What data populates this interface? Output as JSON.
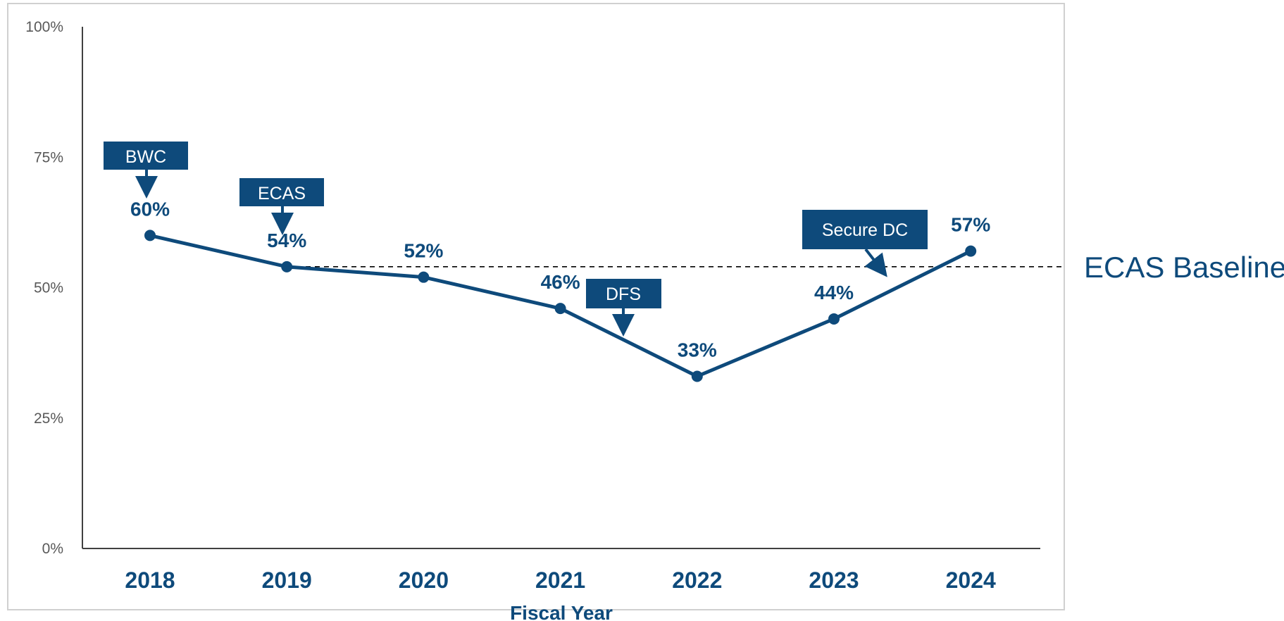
{
  "colors": {
    "series": "#0e4a7b",
    "axis": "#404040",
    "tick_text": "#595959",
    "frame": "#d0d0d0",
    "annotation_bg": "#0e4a7b",
    "annotation_text": "#ffffff"
  },
  "chart_data": {
    "type": "line",
    "title": "",
    "xlabel": "Fiscal Year",
    "ylabel": "",
    "ylim": [
      0,
      100
    ],
    "y_ticks": [
      "0%",
      "25%",
      "50%",
      "75%",
      "100%"
    ],
    "y_tick_values": [
      0,
      25,
      50,
      75,
      100
    ],
    "categories": [
      "2018",
      "2019",
      "2020",
      "2021",
      "2022",
      "2023",
      "2024"
    ],
    "values": [
      60,
      54,
      52,
      46,
      33,
      44,
      57
    ],
    "data_labels": [
      "60%",
      "54%",
      "52%",
      "46%",
      "33%",
      "44%",
      "57%"
    ],
    "grid": false,
    "reference_line": {
      "label": "ECAS Baseline",
      "value": 54,
      "style": "dashed"
    },
    "annotations": [
      {
        "text": "BWC",
        "at_category": "2018"
      },
      {
        "text": "ECAS",
        "at_category": "2019"
      },
      {
        "text": "DFS",
        "between": [
          "2021",
          "2022"
        ]
      },
      {
        "text": "Secure DC",
        "between": [
          "2023",
          "2024"
        ]
      }
    ]
  }
}
